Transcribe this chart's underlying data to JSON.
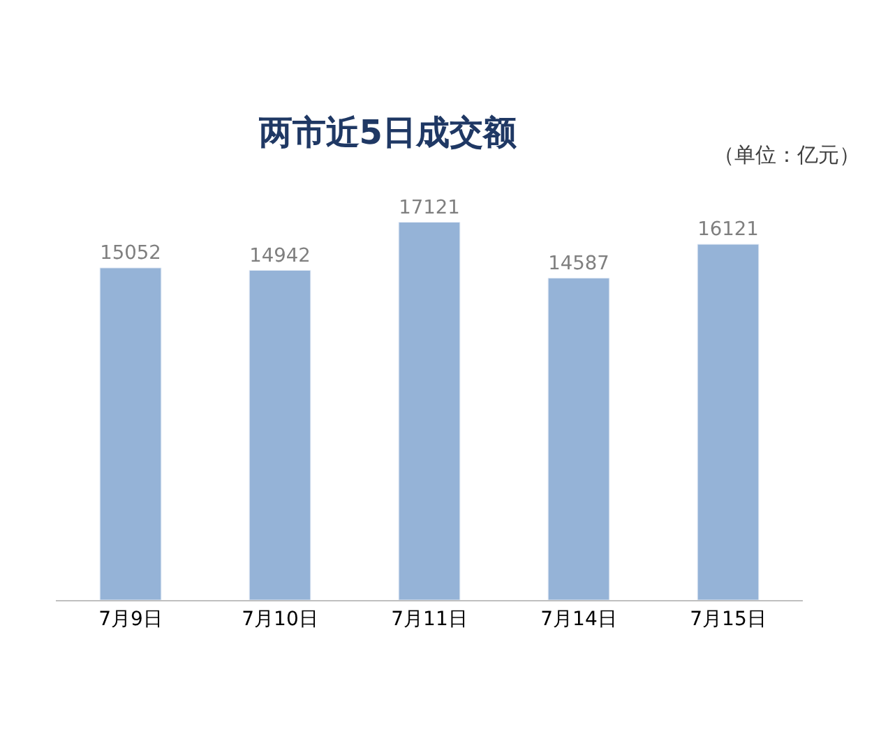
{
  "chart_data": {
    "type": "bar",
    "title": "两市近5日成交额",
    "annotations": [
      "（单位：亿元）"
    ],
    "categories": [
      "7月9日",
      "7月10日",
      "7月11日",
      "7月14日",
      "7月15日"
    ],
    "series": [
      {
        "color": "#95b3d7",
        "values": [
          15052,
          14942,
          17121,
          14587,
          16121
        ]
      }
    ],
    "data_labels": true,
    "tick_labels": "x"
  }
}
